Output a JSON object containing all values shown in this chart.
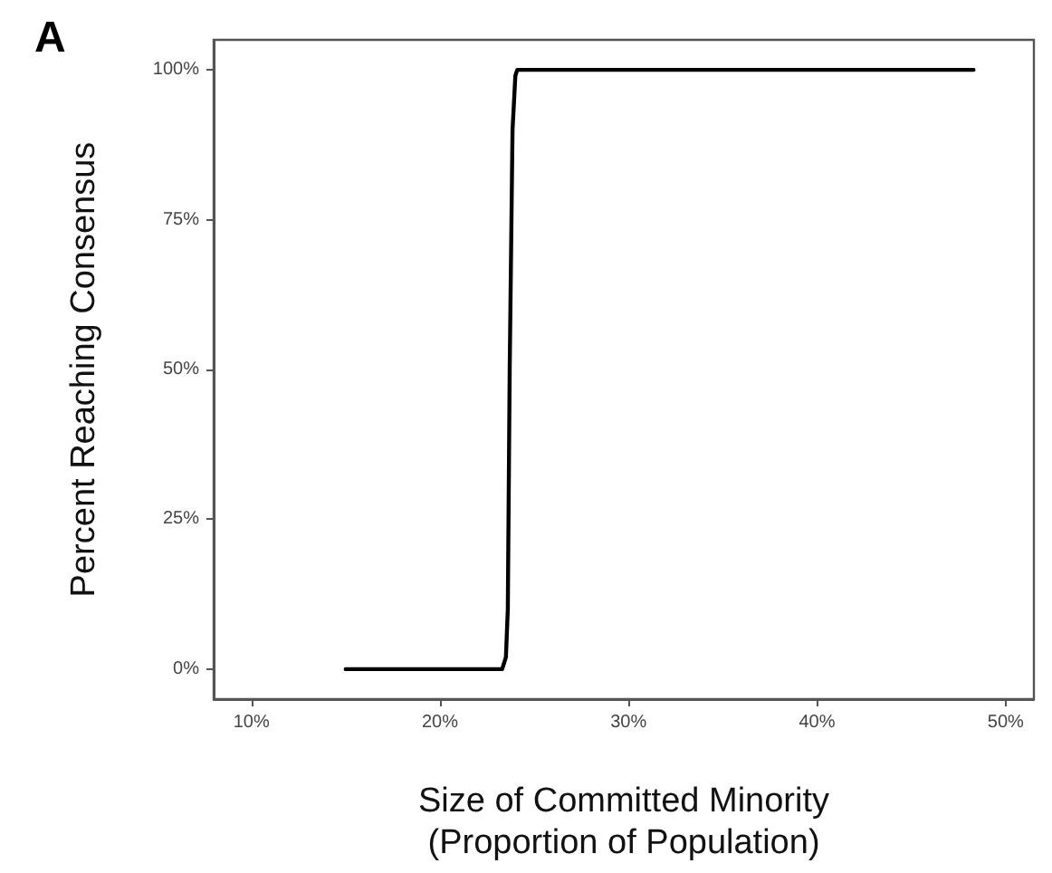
{
  "chart_data": {
    "type": "line",
    "xlabel": "Size of Committed Minority\n(Proportion of Population)",
    "ylabel": "Percent Reaching Consensus",
    "annotations": [
      "A"
    ],
    "x": [
      15,
      23.3,
      23.5,
      23.6,
      23.7,
      23.85,
      24,
      24.1,
      48.3
    ],
    "series": [
      {
        "color": "#000000",
        "values": [
          0,
          0,
          2,
          10,
          50,
          90,
          99,
          100,
          100
        ]
      }
    ],
    "xlim": [
      8,
      51.5
    ],
    "xticks": [
      {
        "value": 10,
        "label": "10%"
      },
      {
        "value": 20,
        "label": "20%"
      },
      {
        "value": 30,
        "label": "30%"
      },
      {
        "value": 40,
        "label": "40%"
      },
      {
        "value": 50,
        "label": "50%"
      }
    ],
    "ylim": [
      -5,
      105
    ],
    "yticks": [
      {
        "value": 0,
        "label": "0%"
      },
      {
        "value": 25,
        "label": "25%"
      },
      {
        "value": 50,
        "label": "50%"
      },
      {
        "value": 75,
        "label": "75%"
      },
      {
        "value": 100,
        "label": "100%"
      }
    ],
    "marker": "none",
    "line_style": "solid"
  }
}
